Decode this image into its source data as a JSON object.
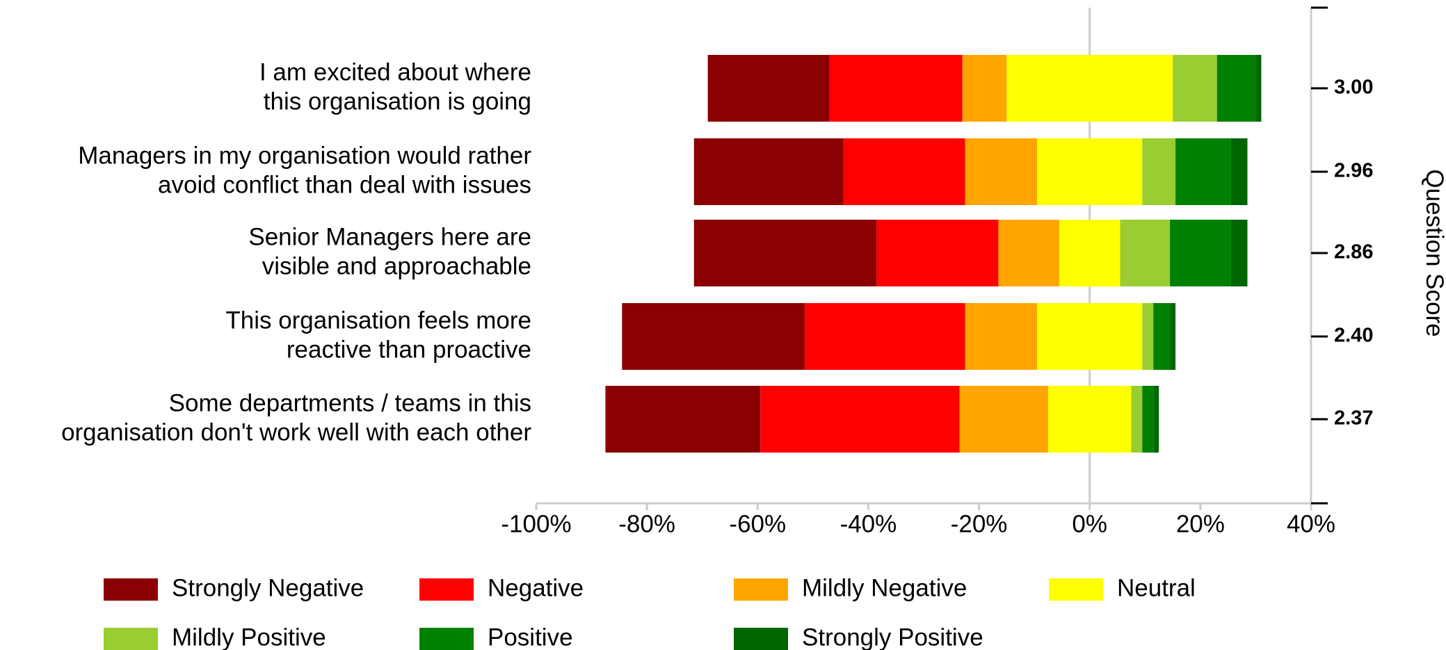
{
  "chart_data": {
    "type": "diverging_bar",
    "categories": [
      [
        "I am excited about where",
        "this organisation is going"
      ],
      [
        "Managers in my organisation would rather",
        "avoid conflict than deal with issues"
      ],
      [
        "Senior Managers here are",
        "visible and approachable"
      ],
      [
        "This organisation feels more",
        "reactive than proactive"
      ],
      [
        "Some departments / teams in this",
        "organisation don't work well with each other"
      ]
    ],
    "series": [
      {
        "name": "Strongly Negative",
        "color": "#8b0000",
        "values": [
          22,
          27,
          33,
          33,
          28
        ]
      },
      {
        "name": "Negative",
        "color": "#ff0000",
        "values": [
          24,
          22,
          22,
          29,
          36
        ]
      },
      {
        "name": "Mildly Negative",
        "color": "#ffa500",
        "values": [
          8,
          13,
          11,
          13,
          16
        ]
      },
      {
        "name": "Neutral",
        "color": "#ffff00",
        "values": [
          30,
          19,
          11,
          19,
          15
        ]
      },
      {
        "name": "Mildly Positive",
        "color": "#9acd32",
        "values": [
          8,
          6,
          9,
          2,
          2
        ]
      },
      {
        "name": "Positive",
        "color": "#008000",
        "values": [
          7,
          10,
          11,
          3,
          2
        ]
      },
      {
        "name": "Strongly Positive",
        "color": "#006400",
        "values": [
          1,
          3,
          3,
          1,
          1
        ]
      }
    ],
    "xlim": [
      -100,
      40
    ],
    "xticks": [
      {
        "value": -100,
        "label": "-100%"
      },
      {
        "value": -80,
        "label": "-80%"
      },
      {
        "value": -60,
        "label": "-60%"
      },
      {
        "value": -40,
        "label": "-40%"
      },
      {
        "value": -20,
        "label": "-20%"
      },
      {
        "value": 0,
        "label": "0%"
      },
      {
        "value": 20,
        "label": "20%"
      },
      {
        "value": 40,
        "label": "40%"
      }
    ],
    "y2label": "Question Score",
    "scores": [
      {
        "value": 3,
        "label": "3.00"
      },
      {
        "value": 2.96,
        "label": "2.96"
      },
      {
        "value": 2.86,
        "label": "2.86"
      },
      {
        "value": 2.4,
        "label": "2.40"
      },
      {
        "value": 2.37,
        "label": "2.37"
      }
    ],
    "legend": "bottom"
  }
}
